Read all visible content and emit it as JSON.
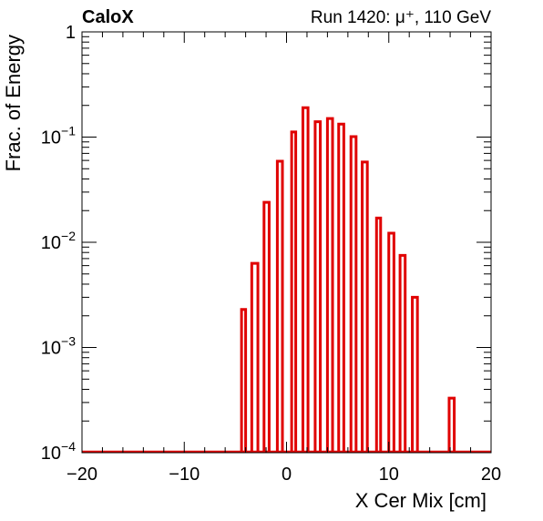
{
  "header": {
    "brand": "CaloX",
    "run_info": "Run 1420:   μ⁺, 110 GeV"
  },
  "chart_data": {
    "type": "bar",
    "style": "outline-histogram",
    "color": "#e00000",
    "title": "",
    "xlabel": "X Cer Mix [cm]",
    "ylabel": "Frac. of Energy",
    "xlim": [
      -20,
      20
    ],
    "ylim": [
      0.0001,
      1
    ],
    "y_scale": "log",
    "grid": false,
    "legend": "none",
    "x_ticks": [
      {
        "value": -20,
        "label": "−20"
      },
      {
        "value": -10,
        "label": "−10"
      },
      {
        "value": 0,
        "label": "0"
      },
      {
        "value": 10,
        "label": "10"
      },
      {
        "value": 20,
        "label": "20"
      }
    ],
    "y_ticks": [
      {
        "value": 0.0001,
        "base": "10",
        "exp": "−4"
      },
      {
        "value": 0.001,
        "base": "10",
        "exp": "−3"
      },
      {
        "value": 0.01,
        "base": "10",
        "exp": "−2"
      },
      {
        "value": 0.1,
        "base": "10",
        "exp": "−1"
      },
      {
        "value": 1,
        "base": "1",
        "exp": ""
      }
    ],
    "bars": [
      {
        "x0": -4.4,
        "x1": -4.0,
        "value": 0.0023
      },
      {
        "x0": -3.4,
        "x1": -2.8,
        "value": 0.0063
      },
      {
        "x0": -2.2,
        "x1": -1.7,
        "value": 0.024
      },
      {
        "x0": -0.9,
        "x1": -0.4,
        "value": 0.059
      },
      {
        "x0": 0.5,
        "x1": 0.9,
        "value": 0.112
      },
      {
        "x0": 1.6,
        "x1": 2.1,
        "value": 0.19
      },
      {
        "x0": 2.8,
        "x1": 3.3,
        "value": 0.14
      },
      {
        "x0": 4.0,
        "x1": 4.5,
        "value": 0.15
      },
      {
        "x0": 5.1,
        "x1": 5.6,
        "value": 0.133
      },
      {
        "x0": 6.3,
        "x1": 6.8,
        "value": 0.101
      },
      {
        "x0": 7.4,
        "x1": 7.9,
        "value": 0.058
      },
      {
        "x0": 8.8,
        "x1": 9.2,
        "value": 0.017
      },
      {
        "x0": 10.0,
        "x1": 10.5,
        "value": 0.0122
      },
      {
        "x0": 11.1,
        "x1": 11.6,
        "value": 0.0075
      },
      {
        "x0": 12.3,
        "x1": 12.8,
        "value": 0.003
      },
      {
        "x0": 15.9,
        "x1": 16.4,
        "value": 0.00033
      }
    ]
  }
}
